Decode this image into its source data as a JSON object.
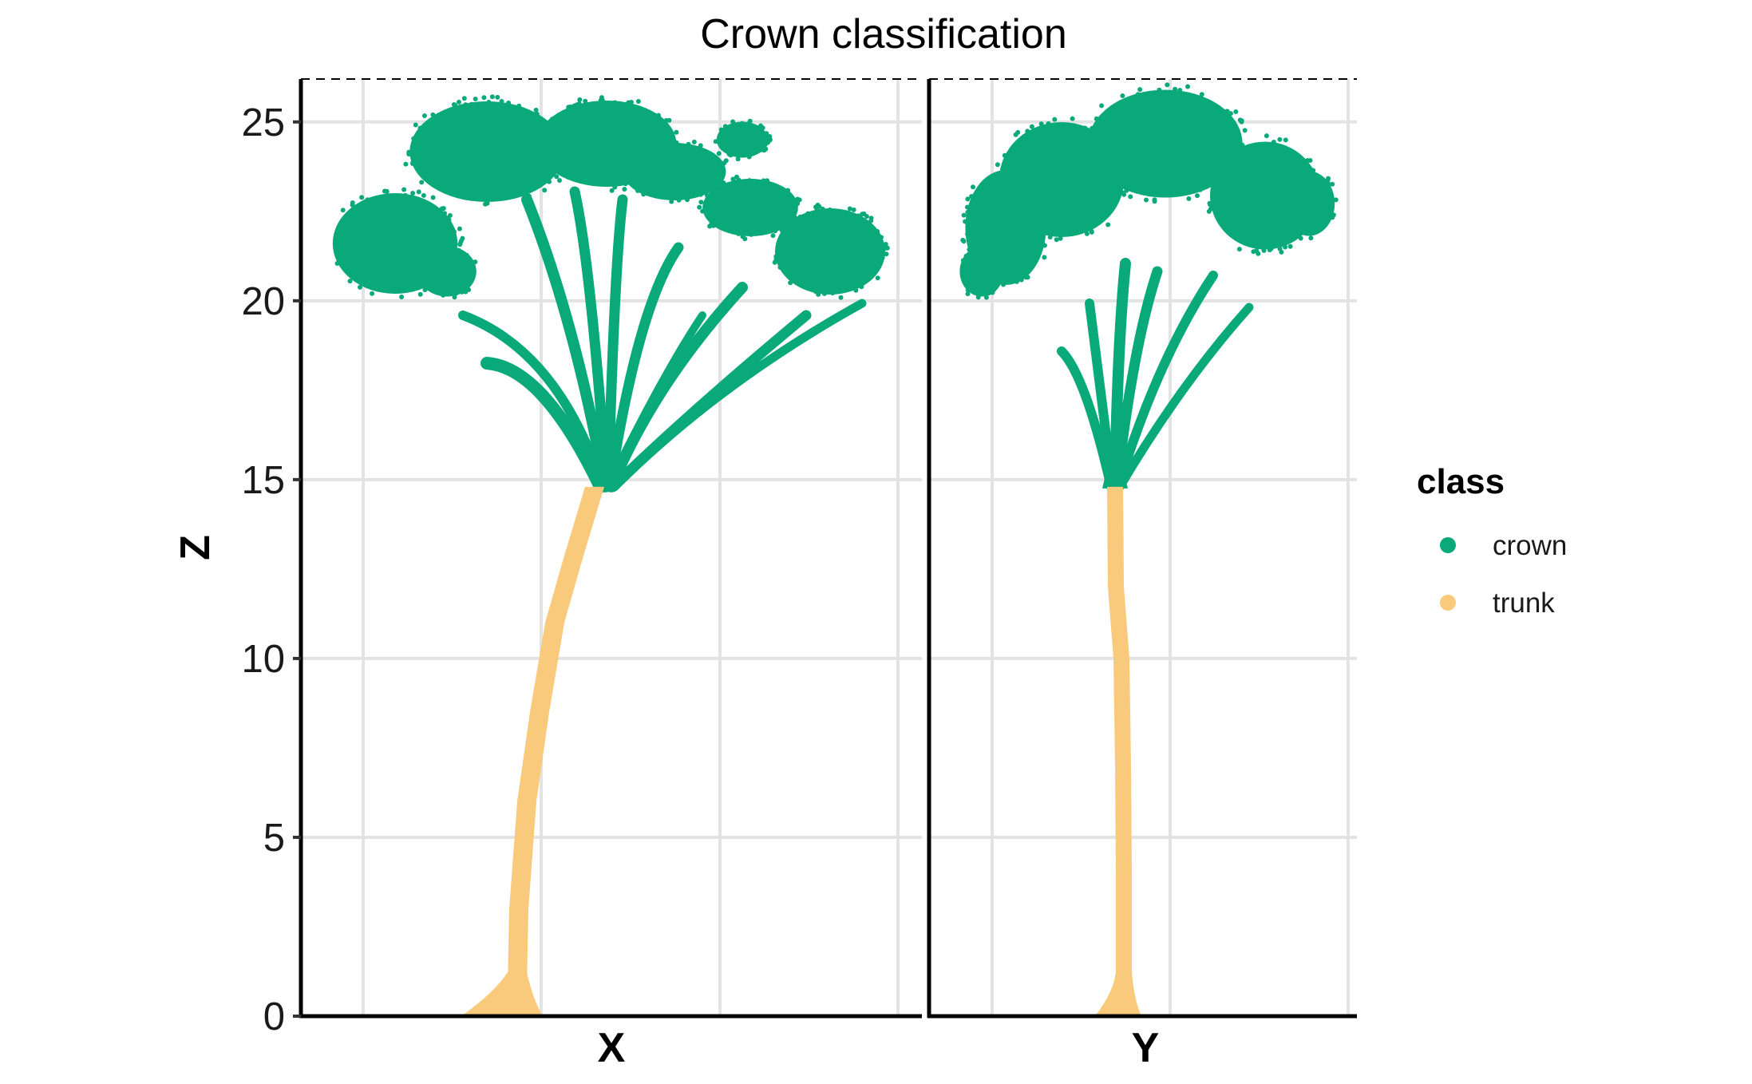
{
  "chart_data": {
    "type": "scatter",
    "title": "Crown classification",
    "ylabel": "Z",
    "ylim": [
      0,
      26.2
    ],
    "yticks": [
      0,
      5,
      10,
      15,
      20,
      25
    ],
    "grid": true,
    "legend_placement": "right",
    "crown_base_height": 14.8,
    "tree_top_height": 26.2,
    "panels": [
      {
        "xlabel": "X",
        "show_x_tick_labels": false
      },
      {
        "xlabel": "Y",
        "show_x_tick_labels": false
      }
    ],
    "legend": {
      "title": "class",
      "entries": [
        {
          "label": "crown",
          "color": "#0aa97a"
        },
        {
          "label": "trunk",
          "color": "#f9c97c"
        }
      ]
    }
  }
}
